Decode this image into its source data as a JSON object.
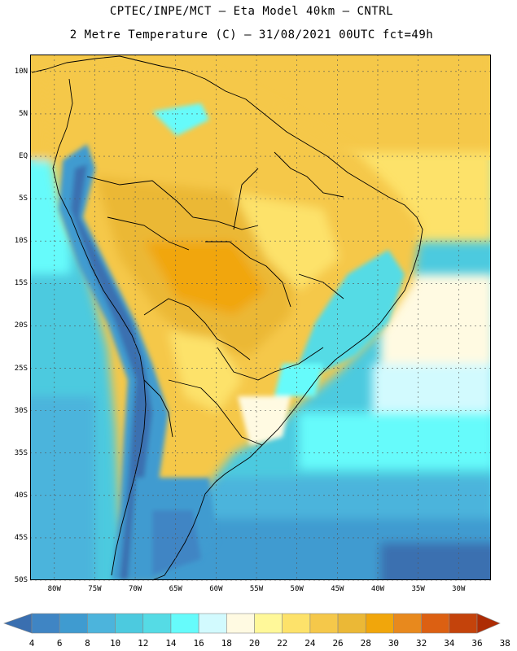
{
  "header": {
    "line1": "CPTEC/INPE/MCT –  Eta Model 40km – CNTRL",
    "line2": "2 Metre Temperature (C) – 31/08/2021 00UTC fct=49h"
  },
  "map": {
    "lat_labels": [
      "10N",
      "5N",
      "EQ",
      "5S",
      "10S",
      "15S",
      "20S",
      "25S",
      "30S",
      "35S",
      "40S",
      "45S",
      "50S"
    ],
    "lon_labels": [
      "80W",
      "75W",
      "70W",
      "65W",
      "60W",
      "55W",
      "50W",
      "45W",
      "40W",
      "35W",
      "30W"
    ],
    "lon_range": [
      -83,
      -26
    ],
    "lat_range": [
      -50,
      12
    ]
  },
  "colorbar": {
    "ticks": [
      "4",
      "6",
      "8",
      "10",
      "12",
      "14",
      "16",
      "18",
      "20",
      "22",
      "24",
      "26",
      "28",
      "30",
      "32",
      "34",
      "36",
      "38"
    ],
    "colors": [
      "#3a6fb0",
      "#3f85c4",
      "#3f9bd0",
      "#4cb4dc",
      "#4ccadf",
      "#55dbe5",
      "#66fbfb",
      "#d2fafe",
      "#fffae2",
      "#fff899",
      "#fde26a",
      "#f5c84a",
      "#ebb836",
      "#f1a60b",
      "#e8891d",
      "#dc6012",
      "#c4430b",
      "#ad2c04"
    ]
  }
}
